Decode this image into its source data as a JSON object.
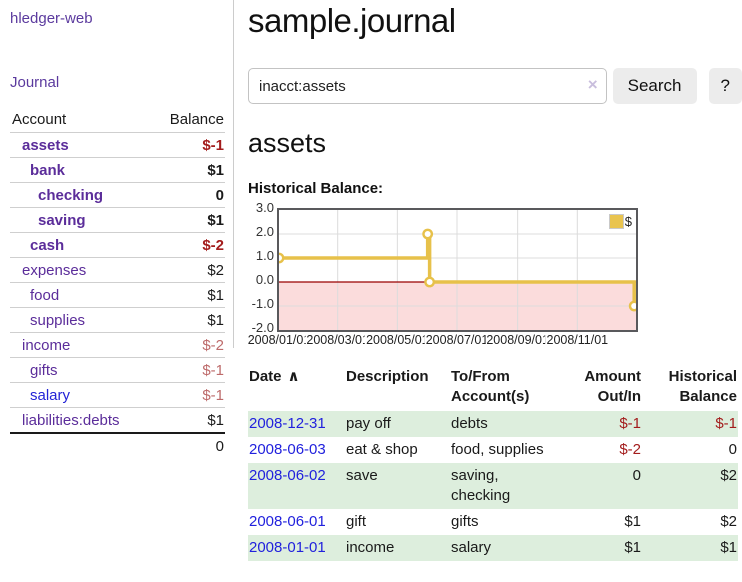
{
  "app": {
    "brand": "hledger-web",
    "nav_journal": "Journal"
  },
  "sidebar": {
    "headers": {
      "account": "Account",
      "balance": "Balance"
    },
    "accounts": [
      {
        "name": "assets",
        "depth": 0,
        "bold": true,
        "name_color": "purple",
        "balance": "$-1",
        "balance_class": "neg-strong"
      },
      {
        "name": "bank",
        "depth": 1,
        "bold": true,
        "name_color": "purple",
        "balance": "$1",
        "balance_class": ""
      },
      {
        "name": "checking",
        "depth": 2,
        "bold": true,
        "name_color": "purple",
        "balance": "0",
        "balance_class": ""
      },
      {
        "name": "saving",
        "depth": 2,
        "bold": true,
        "name_color": "purple",
        "balance": "$1",
        "balance_class": ""
      },
      {
        "name": "cash",
        "depth": 1,
        "bold": true,
        "name_color": "purple",
        "balance": "$-2",
        "balance_class": "neg-strong"
      },
      {
        "name": "expenses",
        "depth": 0,
        "bold": false,
        "name_color": "purple",
        "balance": "$2",
        "balance_class": ""
      },
      {
        "name": "food",
        "depth": 1,
        "bold": false,
        "name_color": "purple",
        "balance": "$1",
        "balance_class": ""
      },
      {
        "name": "supplies",
        "depth": 1,
        "bold": false,
        "name_color": "purple",
        "balance": "$1",
        "balance_class": ""
      },
      {
        "name": "income",
        "depth": 0,
        "bold": false,
        "name_color": "purple",
        "balance": "$-2",
        "balance_class": "neg-soft"
      },
      {
        "name": "gifts",
        "depth": 1,
        "bold": false,
        "name_color": "purple",
        "balance": "$-1",
        "balance_class": "neg-soft"
      },
      {
        "name": "salary",
        "depth": 1,
        "bold": false,
        "name_color": "blue",
        "balance": "$-1",
        "balance_class": "neg-soft"
      },
      {
        "name": "liabilities:debts",
        "depth": 0,
        "bold": false,
        "name_color": "purple",
        "balance": "$1",
        "balance_class": ""
      }
    ],
    "total": "0"
  },
  "main": {
    "title": "sample.journal",
    "search": {
      "value": "inacct:assets",
      "clear_icon": "×",
      "button": "Search",
      "help": "?"
    },
    "account_heading": "assets",
    "chart_label": "Historical Balance:"
  },
  "chart_data": {
    "type": "line",
    "title": "Historical Balance",
    "step": true,
    "series": [
      {
        "name": "$",
        "color": "#e7c14a",
        "points": [
          {
            "date": "2008-01-01",
            "value": 1
          },
          {
            "date": "2008-06-01",
            "value": 2
          },
          {
            "date": "2008-06-03",
            "value": 0
          },
          {
            "date": "2008-12-31",
            "value": -1
          }
        ]
      }
    ],
    "ylim": [
      -2.0,
      3.0
    ],
    "yticks": [
      "3.0",
      "2.0",
      "1.0",
      "0.0",
      "-1.0",
      "-2.0"
    ],
    "xticks": [
      "2008/01/01",
      "2008/03/01",
      "2008/05/01",
      "2008/07/01",
      "2008/09/01",
      "2008/11/01"
    ],
    "x_domain": [
      "2008-01-01",
      "2008-12-31"
    ],
    "legend": "$",
    "legend_position": "top-right",
    "grid": true,
    "negative_region_color": "#fbdcdc",
    "zero_line_color": "#990000"
  },
  "register": {
    "sort_icon": "∧",
    "headers": [
      {
        "line1": "Date",
        "line2": ""
      },
      {
        "line1": "Description",
        "line2": ""
      },
      {
        "line1": "To/From",
        "line2": "Account(s)"
      },
      {
        "line1": "Amount",
        "line2": "Out/In"
      },
      {
        "line1": "Historical",
        "line2": "Balance"
      }
    ],
    "rows": [
      {
        "date": "2008-12-31",
        "description": "pay off",
        "accounts": "debts",
        "amount": "$-1",
        "amount_negative": true,
        "balance": "$-1",
        "balance_negative": true
      },
      {
        "date": "2008-06-03",
        "description": "eat & shop",
        "accounts": "food, supplies",
        "amount": "$-2",
        "amount_negative": true,
        "balance": "0",
        "balance_negative": false
      },
      {
        "date": "2008-06-02",
        "description": "save",
        "accounts": "saving, checking",
        "amount": "0",
        "amount_negative": false,
        "balance": "$2",
        "balance_negative": false
      },
      {
        "date": "2008-06-01",
        "description": "gift",
        "accounts": "gifts",
        "amount": "$1",
        "amount_negative": false,
        "balance": "$2",
        "balance_negative": false
      },
      {
        "date": "2008-01-01",
        "description": "income",
        "accounts": "salary",
        "amount": "$1",
        "amount_negative": false,
        "balance": "$1",
        "balance_negative": false
      }
    ]
  }
}
